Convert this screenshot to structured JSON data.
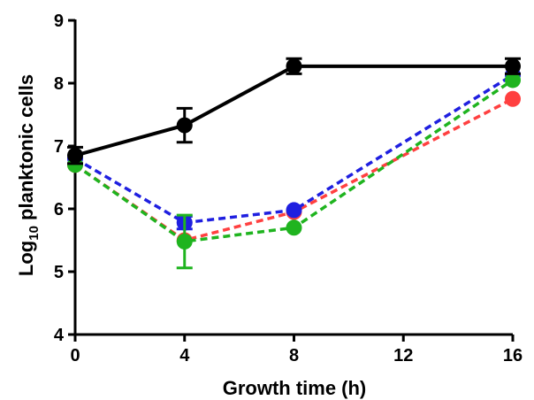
{
  "chart_data": {
    "type": "line",
    "title": "",
    "xlabel": "Growth time (h)",
    "ylabel_prefix": "Log",
    "ylabel_sub": "10",
    "ylabel_suffix": " planktonic cells",
    "xlim": [
      0,
      16
    ],
    "ylim": [
      4,
      9
    ],
    "xticks": [
      0,
      4,
      8,
      12,
      16
    ],
    "yticks": [
      4,
      5,
      6,
      7,
      8,
      9
    ],
    "grid": false,
    "legend": false,
    "series": [
      {
        "color": "#ff4040",
        "line_style": "dashed",
        "x": [
          0,
          4,
          8,
          16
        ],
        "y": [
          6.7,
          5.5,
          5.95,
          7.75
        ],
        "error": [
          0,
          0,
          0,
          0
        ]
      },
      {
        "color": "#1f1fe0",
        "line_style": "dashed",
        "x": [
          0,
          4,
          8,
          16
        ],
        "y": [
          6.8,
          5.78,
          5.98,
          8.13
        ],
        "error": [
          0,
          0.1,
          0,
          0
        ]
      },
      {
        "color": "#1fb41f",
        "line_style": "dashed",
        "x": [
          0,
          4,
          8,
          16
        ],
        "y": [
          6.7,
          5.48,
          5.7,
          8.05
        ],
        "error": [
          0,
          0.42,
          0,
          0
        ]
      },
      {
        "color": "#000000",
        "line_style": "solid",
        "x": [
          0,
          4,
          8,
          16
        ],
        "y": [
          6.85,
          7.33,
          8.27,
          8.27
        ],
        "error": [
          0.13,
          0.27,
          0.12,
          0.12
        ]
      }
    ]
  }
}
